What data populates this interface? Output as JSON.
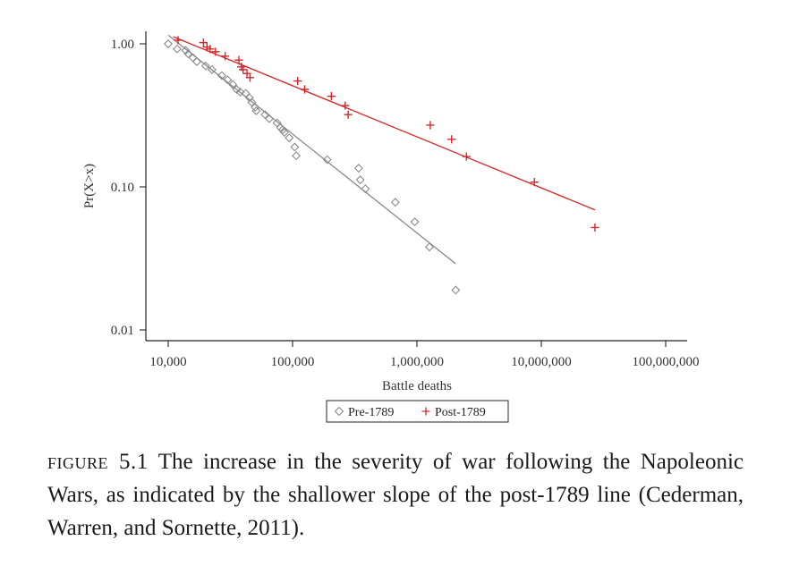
{
  "caption": {
    "label": "FIGURE 5.1",
    "text": " The increase in the severity of war following the Napoleonic Wars, as indicated by the shallower slope of the post-1789 line (Cederman, Warren, and Sornette, 2011)."
  },
  "colors": {
    "pre": "#8a8a8a",
    "post": "#d62728",
    "axis": "#222222"
  },
  "chart_data": {
    "type": "scatter",
    "xscale": "log",
    "yscale": "log",
    "xlabel": "Battle deaths",
    "ylabel": "Pr(X>x)",
    "xlim": [
      10000,
      100000000
    ],
    "ylim": [
      0.01,
      1.0
    ],
    "x_ticks": [
      10000,
      100000,
      1000000,
      10000000,
      100000000
    ],
    "x_tick_labels": [
      "10,000",
      "100,000",
      "1,000,000",
      "10,000,000",
      "100,000,000"
    ],
    "y_ticks": [
      1.0,
      0.1,
      0.01
    ],
    "y_tick_labels": [
      "1.00",
      "0.10",
      "0.01"
    ],
    "legend": {
      "placement": "bottom-center",
      "entries": [
        "Pre-1789",
        "Post-1789"
      ]
    },
    "series": [
      {
        "name": "Pre-1789",
        "marker": "diamond",
        "color": "#8a8a8a",
        "points": [
          [
            10000,
            1.0
          ],
          [
            11800,
            0.92
          ],
          [
            13800,
            0.9
          ],
          [
            14500,
            0.85
          ],
          [
            15800,
            0.8
          ],
          [
            17000,
            0.75
          ],
          [
            20000,
            0.7
          ],
          [
            22500,
            0.66
          ],
          [
            27000,
            0.6
          ],
          [
            30000,
            0.56
          ],
          [
            33000,
            0.52
          ],
          [
            35500,
            0.48
          ],
          [
            38000,
            0.46
          ],
          [
            42000,
            0.45
          ],
          [
            45000,
            0.42
          ],
          [
            47000,
            0.39
          ],
          [
            50000,
            0.36
          ],
          [
            51000,
            0.34
          ],
          [
            60000,
            0.32
          ],
          [
            65000,
            0.3
          ],
          [
            75000,
            0.28
          ],
          [
            80000,
            0.26
          ],
          [
            83000,
            0.25
          ],
          [
            86000,
            0.24
          ],
          [
            94000,
            0.22
          ],
          [
            104000,
            0.19
          ],
          [
            107000,
            0.165
          ],
          [
            190000,
            0.155
          ],
          [
            340000,
            0.135
          ],
          [
            350000,
            0.112
          ],
          [
            385000,
            0.097
          ],
          [
            670000,
            0.078
          ],
          [
            960000,
            0.057
          ],
          [
            1260000,
            0.038
          ],
          [
            2050000,
            0.019
          ]
        ],
        "fit": [
          [
            10000,
            1.15
          ],
          [
            2050000,
            0.029
          ]
        ]
      },
      {
        "name": "Post-1789",
        "marker": "plus",
        "color": "#d62728",
        "points": [
          [
            12000,
            1.06
          ],
          [
            19200,
            1.02
          ],
          [
            20500,
            0.95
          ],
          [
            21700,
            0.92
          ],
          [
            24000,
            0.88
          ],
          [
            28700,
            0.82
          ],
          [
            37000,
            0.77
          ],
          [
            38700,
            0.69
          ],
          [
            40000,
            0.66
          ],
          [
            43000,
            0.62
          ],
          [
            45500,
            0.58
          ],
          [
            110000,
            0.55
          ],
          [
            125000,
            0.48
          ],
          [
            205000,
            0.43
          ],
          [
            265000,
            0.37
          ],
          [
            280000,
            0.32
          ],
          [
            1280000,
            0.27
          ],
          [
            1900000,
            0.215
          ],
          [
            2500000,
            0.163
          ],
          [
            8800000,
            0.108
          ],
          [
            27000000,
            0.052
          ]
        ],
        "fit": [
          [
            11000,
            1.12
          ],
          [
            27000000,
            0.069
          ]
        ]
      }
    ]
  }
}
